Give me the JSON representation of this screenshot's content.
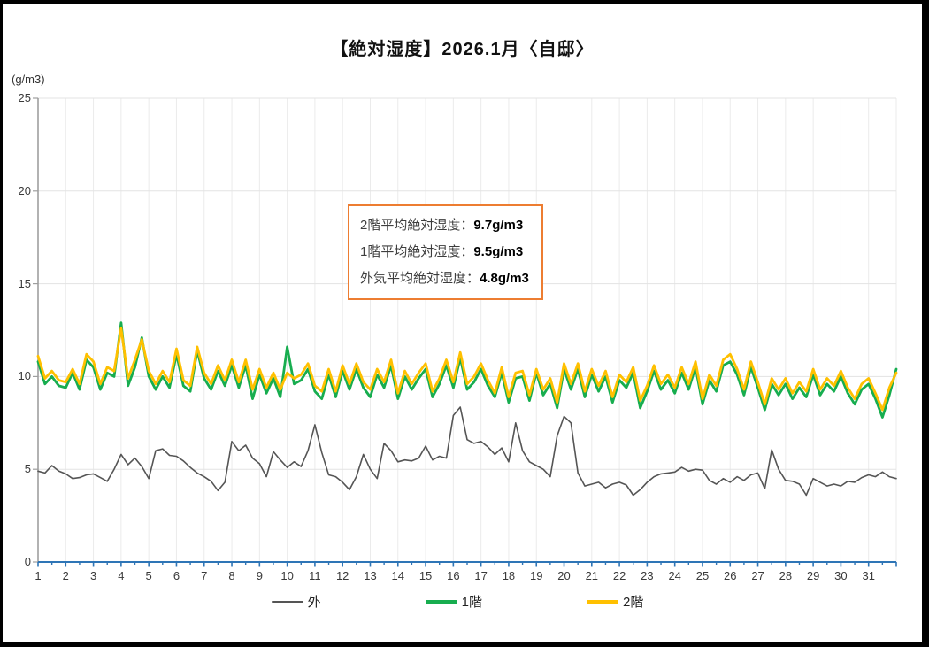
{
  "title": "【絶対湿度】2026.1月〈自邸〉",
  "y_axis": {
    "unit_label": "(g/m3)",
    "tick_labels": [
      "0",
      "5",
      "10",
      "15",
      "20",
      "25"
    ],
    "tick_values": [
      0,
      5,
      10,
      15,
      20,
      25
    ],
    "axis_color": "#9e9e9e"
  },
  "x_axis": {
    "tick_labels": [
      "1",
      "2",
      "3",
      "4",
      "5",
      "6",
      "7",
      "8",
      "9",
      "10",
      "11",
      "12",
      "13",
      "14",
      "15",
      "16",
      "17",
      "18",
      "19",
      "20",
      "21",
      "22",
      "23",
      "24",
      "25",
      "26",
      "27",
      "28",
      "29",
      "30",
      "31"
    ],
    "axis_color": "#2E75B6"
  },
  "grid": {
    "h_color": "#e3e3e3",
    "v_color": "#ebebeb"
  },
  "annotation": {
    "border_color": "#ED7D31",
    "lines": [
      {
        "label": "2階平均絶対湿度：",
        "value": "9.7g/m3"
      },
      {
        "label": "1階平均絶対湿度：",
        "value": "9.5g/m3"
      },
      {
        "label": "外気平均絶対湿度：",
        "value": "4.8g/m3"
      }
    ]
  },
  "legend": {
    "items": [
      {
        "key": "outside",
        "label": "外",
        "color": "#555555"
      },
      {
        "key": "floor1",
        "label": "1階",
        "color": "#17AD4F"
      },
      {
        "key": "floor2",
        "label": "2階",
        "color": "#FFC000"
      }
    ]
  },
  "chart_data": {
    "type": "line",
    "title": "【絶対湿度】2026.1月〈自邸〉",
    "ylabel": "(g/m3)",
    "ylim": [
      0,
      25
    ],
    "xlim_days": [
      1,
      32
    ],
    "x_unit": "day_of_january",
    "x_start_day": 1,
    "x_step_days": 0.25,
    "grid": true,
    "legend_position": "bottom",
    "averages": {
      "floor2_2階": 9.7,
      "floor1_1階": 9.5,
      "outside_外気": 4.8
    },
    "series": [
      {
        "name": "外",
        "key": "outside",
        "color": "#555555",
        "width": 1.6,
        "values": [
          4.9,
          4.8,
          5.2,
          4.9,
          4.75,
          4.5,
          4.55,
          4.7,
          4.75,
          4.55,
          4.35,
          5.0,
          5.8,
          5.25,
          5.6,
          5.15,
          4.5,
          6.0,
          6.1,
          5.75,
          5.7,
          5.45,
          5.1,
          4.8,
          4.6,
          4.35,
          3.85,
          4.3,
          6.5,
          6.0,
          6.3,
          5.6,
          5.3,
          4.6,
          5.95,
          5.5,
          5.1,
          5.4,
          5.15,
          6.0,
          7.4,
          5.9,
          4.7,
          4.6,
          4.3,
          3.9,
          4.6,
          5.8,
          5.0,
          4.5,
          6.4,
          6.0,
          5.4,
          5.5,
          5.45,
          5.6,
          6.25,
          5.5,
          5.7,
          5.6,
          7.9,
          8.35,
          6.6,
          6.4,
          6.5,
          6.2,
          5.8,
          6.15,
          5.4,
          7.5,
          6.0,
          5.4,
          5.2,
          5.0,
          4.6,
          6.8,
          7.85,
          7.5,
          4.8,
          4.1,
          4.2,
          4.3,
          4.0,
          4.2,
          4.3,
          4.15,
          3.6,
          3.9,
          4.3,
          4.6,
          4.75,
          4.8,
          4.85,
          5.1,
          4.9,
          5.0,
          4.95,
          4.4,
          4.2,
          4.5,
          4.3,
          4.6,
          4.4,
          4.7,
          4.8,
          3.95,
          6.05,
          5.0,
          4.4,
          4.35,
          4.2,
          3.6,
          4.5,
          4.3,
          4.1,
          4.2,
          4.1,
          4.35,
          4.3,
          4.55,
          4.7,
          4.6,
          4.85,
          4.6,
          4.5
        ]
      },
      {
        "name": "1階",
        "key": "floor1",
        "color": "#17AD4F",
        "width": 2.8,
        "values": [
          10.8,
          9.6,
          10.0,
          9.5,
          9.4,
          10.2,
          9.3,
          10.9,
          10.5,
          9.3,
          10.2,
          10.0,
          12.9,
          9.5,
          10.5,
          12.1,
          10.0,
          9.3,
          10.0,
          9.4,
          11.2,
          9.5,
          9.2,
          11.4,
          9.9,
          9.3,
          10.3,
          9.5,
          10.6,
          9.4,
          10.6,
          8.8,
          10.1,
          9.1,
          9.9,
          8.9,
          11.6,
          9.6,
          9.8,
          10.4,
          9.2,
          8.8,
          10.1,
          8.9,
          10.3,
          9.3,
          10.4,
          9.4,
          8.9,
          10.1,
          9.4,
          10.6,
          8.8,
          10.0,
          9.3,
          9.9,
          10.4,
          8.9,
          9.6,
          10.6,
          9.4,
          11.0,
          9.3,
          9.7,
          10.4,
          9.5,
          8.9,
          10.2,
          8.6,
          9.9,
          10.0,
          8.7,
          10.2,
          9.0,
          9.6,
          8.3,
          10.4,
          9.3,
          10.4,
          8.9,
          10.1,
          9.2,
          10.0,
          8.6,
          9.8,
          9.4,
          10.2,
          8.3,
          9.2,
          10.3,
          9.3,
          9.8,
          9.1,
          10.2,
          9.3,
          10.5,
          8.5,
          9.8,
          9.2,
          10.6,
          10.8,
          10.1,
          9.0,
          10.5,
          9.4,
          8.2,
          9.6,
          9.0,
          9.6,
          8.8,
          9.4,
          8.9,
          10.1,
          9.0,
          9.6,
          9.2,
          10.0,
          9.1,
          8.5,
          9.3,
          9.6,
          8.8,
          7.8,
          9.0,
          10.4
        ]
      },
      {
        "name": "2階",
        "key": "floor2",
        "color": "#FFC000",
        "width": 2.8,
        "values": [
          11.1,
          9.9,
          10.3,
          9.8,
          9.7,
          10.4,
          9.6,
          11.2,
          10.8,
          9.6,
          10.5,
          10.3,
          12.6,
          9.9,
          10.9,
          12.0,
          10.3,
          9.6,
          10.3,
          9.7,
          11.5,
          9.8,
          9.5,
          11.6,
          10.2,
          9.6,
          10.6,
          9.8,
          10.9,
          9.7,
          10.9,
          9.3,
          10.4,
          9.4,
          10.2,
          9.3,
          10.2,
          9.9,
          10.1,
          10.7,
          9.5,
          9.2,
          10.4,
          9.2,
          10.6,
          9.6,
          10.7,
          9.7,
          9.3,
          10.4,
          9.7,
          10.9,
          9.1,
          10.3,
          9.6,
          10.2,
          10.7,
          9.2,
          9.9,
          10.9,
          9.7,
          11.3,
          9.6,
          10.0,
          10.7,
          9.8,
          9.1,
          10.5,
          8.9,
          10.2,
          10.3,
          9.0,
          10.4,
          9.3,
          9.9,
          8.6,
          10.7,
          9.6,
          10.7,
          9.2,
          10.4,
          9.5,
          10.3,
          8.9,
          10.1,
          9.7,
          10.5,
          8.7,
          9.5,
          10.6,
          9.6,
          10.1,
          9.4,
          10.5,
          9.6,
          10.8,
          8.8,
          10.1,
          9.5,
          10.9,
          11.2,
          10.4,
          9.3,
          10.8,
          9.7,
          8.5,
          9.9,
          9.3,
          9.9,
          9.1,
          9.7,
          9.2,
          10.4,
          9.3,
          9.9,
          9.5,
          10.3,
          9.4,
          8.8,
          9.6,
          9.9,
          9.1,
          8.2,
          9.4,
          10.2
        ]
      }
    ]
  }
}
